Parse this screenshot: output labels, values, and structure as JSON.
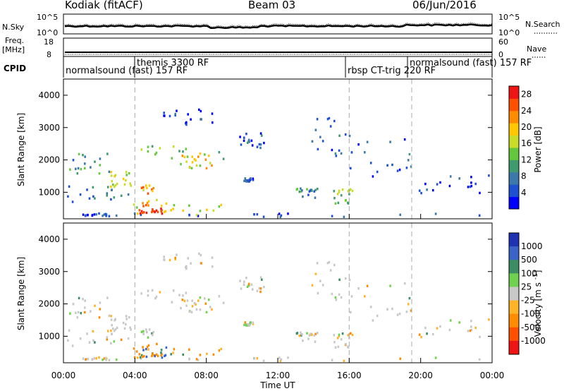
{
  "header": {
    "station": "Kodiak (fitACF)",
    "beam": "Beam 03",
    "date": "06/Jun/2016"
  },
  "strip_labels": {
    "nsky": "N.Sky",
    "nsky_tick_top": "10^5",
    "nsky_tick_bottom": "10^0",
    "nsearch": "N.Search",
    "nsearch_tick_top": "10^5",
    "nsearch_tick_bottom": "10^0",
    "freq_line1": "Freq.",
    "freq_line2": "[MHz]",
    "freq_tick_top": "18",
    "freq_tick_bottom": "8",
    "nave": "Nave",
    "nave_tick_top": "60",
    "nave_tick_bottom": "0",
    "cpid": "CPID"
  },
  "cpid_segments": [
    {
      "label": "normalsound (fast) 157 RF",
      "start_h": 0.0,
      "end_h": 4.0
    },
    {
      "label": "themis 3300 RF",
      "start_h": 4.0,
      "end_h": 16.0
    },
    {
      "label": "rbsp CT-trig 220 RF",
      "start_h": 16.0,
      "end_h": 19.5
    },
    {
      "label": "normalsound (fast) 157 RF",
      "start_h": 19.5,
      "end_h": 24.0
    }
  ],
  "chart_data": [
    {
      "type": "heatmap",
      "quantity": "power",
      "xlabel": "Time UT",
      "ylabel": "Slant Range [km]",
      "x_ticks": [
        "00:00",
        "04:00",
        "08:00",
        "12:00",
        "16:00",
        "20:00",
        "00:00"
      ],
      "xlim_hours": [
        0,
        24
      ],
      "y_ticks": [
        1000,
        2000,
        3000,
        4000
      ],
      "ylim": [
        180,
        4500
      ],
      "colorbar": {
        "label": "Power [dB]",
        "ticks": [
          4,
          8,
          12,
          16,
          20,
          24,
          28
        ],
        "range": [
          0,
          30
        ],
        "colors": [
          "#0000ff",
          "#1e50d2",
          "#3c78aa",
          "#3f9b6e",
          "#64c83c",
          "#c8dc28",
          "#ffc800",
          "#ff8c00",
          "#ff5000",
          "#f01414"
        ]
      },
      "mode_change_hours": [
        4.0,
        16.0,
        19.5
      ],
      "echo_regions": [
        {
          "t0": 0.5,
          "t1": 3.0,
          "r0": 230,
          "r1": 330,
          "level": 0.15
        },
        {
          "t0": 3.0,
          "t1": 24.0,
          "r0": 200,
          "r1": 330,
          "level": 0.15
        },
        {
          "t0": 3.5,
          "t1": 9.0,
          "r0": 250,
          "r1": 620,
          "level": 0.55
        },
        {
          "t0": 4.1,
          "t1": 5.6,
          "r0": 300,
          "r1": 480,
          "level": 0.97
        },
        {
          "t0": 4.3,
          "t1": 5.2,
          "r0": 480,
          "r1": 1180,
          "level": 0.72
        },
        {
          "t0": 0.2,
          "t1": 3.6,
          "r0": 650,
          "r1": 1150,
          "level": 0.25
        },
        {
          "t0": 2.6,
          "t1": 3.8,
          "r0": 1100,
          "r1": 1600,
          "level": 0.62
        },
        {
          "t0": 0.2,
          "t1": 2.6,
          "r0": 1550,
          "r1": 2250,
          "level": 0.3
        },
        {
          "t0": 3.9,
          "t1": 9.0,
          "r0": 1950,
          "r1": 2400,
          "level": 0.5
        },
        {
          "t0": 6.5,
          "t1": 8.4,
          "r0": 1700,
          "r1": 2100,
          "level": 0.62
        },
        {
          "t0": 5.5,
          "t1": 8.5,
          "r0": 3050,
          "r1": 3550,
          "level": 0.12
        },
        {
          "t0": 9.8,
          "t1": 11.2,
          "r0": 2300,
          "r1": 2800,
          "level": 0.18
        },
        {
          "t0": 10.0,
          "t1": 10.6,
          "r0": 1300,
          "r1": 1400,
          "level": 0.15
        },
        {
          "t0": 13.0,
          "t1": 14.2,
          "r0": 800,
          "r1": 1100,
          "level": 0.28
        },
        {
          "t0": 13.8,
          "t1": 16.5,
          "r0": 2000,
          "r1": 3300,
          "level": 0.22
        },
        {
          "t0": 15.0,
          "t1": 16.2,
          "r0": 600,
          "r1": 1100,
          "level": 0.45
        },
        {
          "t0": 16.0,
          "t1": 19.5,
          "r0": 1400,
          "r1": 2700,
          "level": 0.18
        },
        {
          "t0": 19.5,
          "t1": 23.8,
          "r0": 900,
          "r1": 1500,
          "level": 0.1
        }
      ]
    },
    {
      "type": "heatmap",
      "quantity": "velocity",
      "xlabel": "Time UT",
      "ylabel": "Slant Range [km]",
      "x_ticks": [
        "00:00",
        "04:00",
        "08:00",
        "12:00",
        "16:00",
        "20:00",
        "00:00"
      ],
      "xlim_hours": [
        0,
        24
      ],
      "y_ticks": [
        1000,
        2000,
        3000,
        4000
      ],
      "ylim": [
        180,
        4500
      ],
      "colorbar": {
        "label": "Velocity [m s^-1]",
        "ticks": [
          1000,
          500,
          100,
          25,
          -25,
          -100,
          -500,
          -1000
        ],
        "colors": [
          "#1e32b4",
          "#3c64c8",
          "#3c8c64",
          "#6ed250",
          "#c8c8c8",
          "#ffb428",
          "#ff8c00",
          "#ff5000",
          "#f01414"
        ]
      },
      "mode_change_hours": [
        4.0,
        16.0,
        19.5
      ]
    }
  ]
}
